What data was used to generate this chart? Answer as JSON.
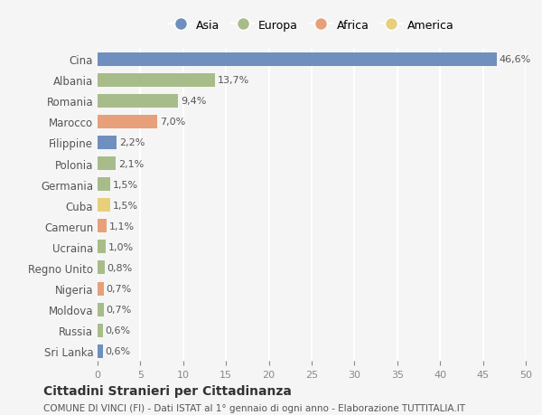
{
  "countries": [
    "Cina",
    "Albania",
    "Romania",
    "Marocco",
    "Filippine",
    "Polonia",
    "Germania",
    "Cuba",
    "Camerun",
    "Ucraina",
    "Regno Unito",
    "Nigeria",
    "Moldova",
    "Russia",
    "Sri Lanka"
  ],
  "values": [
    46.6,
    13.7,
    9.4,
    7.0,
    2.2,
    2.1,
    1.5,
    1.5,
    1.1,
    1.0,
    0.8,
    0.7,
    0.7,
    0.6,
    0.6
  ],
  "labels": [
    "46,6%",
    "13,7%",
    "9,4%",
    "7,0%",
    "2,2%",
    "2,1%",
    "1,5%",
    "1,5%",
    "1,1%",
    "1,0%",
    "0,8%",
    "0,7%",
    "0,7%",
    "0,6%",
    "0,6%"
  ],
  "continents": [
    "Asia",
    "Europa",
    "Europa",
    "Africa",
    "Asia",
    "Europa",
    "Europa",
    "America",
    "Africa",
    "Europa",
    "Europa",
    "Africa",
    "Europa",
    "Europa",
    "Asia"
  ],
  "continent_colors": {
    "Asia": "#6f8fbf",
    "Europa": "#a8bc8a",
    "Africa": "#e8a07a",
    "America": "#e8d07a"
  },
  "legend_order": [
    "Asia",
    "Europa",
    "Africa",
    "America"
  ],
  "xlim": [
    0,
    50
  ],
  "xticks": [
    0,
    5,
    10,
    15,
    20,
    25,
    30,
    35,
    40,
    45,
    50
  ],
  "title": "Cittadini Stranieri per Cittadinanza",
  "subtitle": "COMUNE DI VINCI (FI) - Dati ISTAT al 1° gennaio di ogni anno - Elaborazione TUTTITALIA.IT",
  "background_color": "#f5f5f5",
  "grid_color": "#ffffff",
  "bar_height": 0.65
}
